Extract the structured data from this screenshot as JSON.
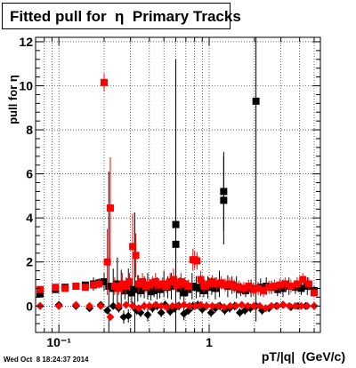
{
  "title": "Fitted pull for  η  Primary Tracks",
  "timestamp": "Wed Oct  8 18:24:37 2014",
  "chart_data": {
    "type": "scatter",
    "title": "Fitted pull for  η  Primary Tracks",
    "xlabel": "pT/|q|  (GeV/c)",
    "ylabel": "pull for η",
    "xscale": "log",
    "xlim": [
      0.07,
      5.5
    ],
    "ylim": [
      -1.2,
      12.2
    ],
    "grid": true,
    "x_tick_labels": [
      "10⁻¹",
      "1"
    ],
    "y_tick_labels": [
      "0",
      "2",
      "4",
      "6",
      "8",
      "10",
      "12"
    ],
    "colors": {
      "series_black": "#000000",
      "series_red": "#ff0000"
    },
    "series": [
      {
        "color": "#000000",
        "marker": "square",
        "x": [
          0.075,
          0.095,
          0.11,
          0.13,
          0.15,
          0.17,
          0.185,
          0.2,
          0.215,
          0.23,
          0.245,
          0.26,
          0.275,
          0.29,
          0.305,
          0.32,
          0.335,
          0.35,
          0.37,
          0.39,
          0.41,
          0.43,
          0.45,
          0.47,
          0.5,
          0.53,
          0.56,
          0.6,
          0.6,
          0.64,
          0.68,
          0.72,
          0.77,
          0.82,
          0.87,
          0.92,
          0.98,
          1.04,
          1.1,
          1.17,
          1.25,
          1.25,
          1.33,
          1.42,
          1.52,
          1.62,
          1.75,
          1.9,
          2.05,
          2.2,
          2.4,
          2.6,
          2.85,
          3.1,
          3.4,
          3.75,
          4.1,
          4.5,
          5.0
        ],
        "y": [
          0.55,
          0.75,
          0.85,
          0.9,
          0.95,
          1.0,
          1.05,
          1.1,
          0.9,
          0.8,
          1.0,
          0.85,
          0.7,
          0.9,
          0.6,
          0.75,
          0.8,
          0.7,
          0.85,
          0.9,
          0.65,
          0.7,
          0.8,
          0.75,
          1.0,
          0.85,
          0.9,
          3.7,
          2.8,
          0.8,
          0.6,
          0.75,
          0.9,
          0.85,
          0.8,
          0.7,
          0.85,
          0.9,
          0.8,
          1.0,
          4.8,
          5.2,
          0.9,
          0.95,
          0.85,
          0.75,
          0.7,
          0.8,
          9.3,
          0.85,
          0.9,
          0.85,
          0.75,
          0.8,
          0.9,
          0.85,
          0.8,
          0.9,
          0.7
        ],
        "yerr": [
          0.15,
          0.1,
          0.1,
          0.12,
          0.1,
          0.3,
          0.2,
          0.4,
          5.2,
          0.9,
          1.2,
          0.8,
          0.4,
          0.8,
          0.5,
          3.5,
          0.6,
          0.3,
          0.5,
          0.6,
          0.4,
          0.3,
          0.5,
          0.4,
          0.6,
          0.5,
          0.6,
          7.5,
          1.5,
          0.5,
          0.4,
          0.3,
          0.6,
          0.5,
          0.4,
          0.3,
          0.5,
          0.4,
          0.5,
          0.6,
          2.0,
          1.8,
          0.5,
          0.4,
          0.5,
          0.3,
          0.3,
          0.4,
          10.0,
          0.4,
          0.4,
          0.3,
          0.3,
          0.4,
          0.4,
          0.3,
          0.3,
          0.4,
          0.2
        ]
      },
      {
        "color": "#000000",
        "marker": "diamond",
        "x": [
          0.075,
          0.1,
          0.13,
          0.16,
          0.19,
          0.21,
          0.23,
          0.25,
          0.27,
          0.29,
          0.31,
          0.33,
          0.35,
          0.37,
          0.39,
          0.42,
          0.45,
          0.48,
          0.51,
          0.55,
          0.59,
          0.63,
          0.68,
          0.73,
          0.78,
          0.84,
          0.9,
          0.96,
          1.03,
          1.1,
          1.18,
          1.27,
          1.37,
          1.48,
          1.6,
          1.73,
          1.88,
          2.05,
          2.25,
          2.5,
          2.8,
          3.1,
          3.5,
          3.9,
          4.4,
          5.0
        ],
        "y": [
          0.0,
          0.05,
          0.0,
          -0.1,
          0.05,
          -0.2,
          0.0,
          -0.1,
          -0.5,
          -0.45,
          0.0,
          -0.2,
          -0.3,
          0.0,
          -0.4,
          -0.1,
          0.0,
          -0.3,
          0.05,
          -0.25,
          -0.1,
          0.0,
          -0.35,
          -0.2,
          0.0,
          0.05,
          -0.15,
          0.0,
          -0.3,
          -0.1,
          0.0,
          -0.2,
          -0.1,
          0.0,
          -0.3,
          -0.2,
          -0.1,
          0.0,
          -0.2,
          -0.1,
          0.0,
          0.05,
          -0.05,
          0.0,
          0.0,
          0.0
        ],
        "yerr": [
          0.1,
          0.1,
          0.1,
          0.1,
          0.1,
          0.15,
          0.15,
          0.2,
          0.3,
          0.3,
          0.2,
          0.2,
          0.2,
          0.2,
          0.3,
          0.2,
          0.2,
          0.2,
          0.2,
          0.2,
          0.2,
          0.2,
          0.3,
          0.2,
          0.2,
          0.2,
          0.2,
          0.2,
          0.2,
          0.2,
          0.2,
          0.2,
          0.2,
          0.2,
          0.2,
          0.2,
          0.2,
          0.2,
          0.2,
          0.15,
          0.15,
          0.1,
          0.1,
          0.1,
          0.1,
          0.1
        ]
      },
      {
        "color": "#ff0000",
        "marker": "square",
        "x": [
          0.075,
          0.095,
          0.11,
          0.13,
          0.15,
          0.17,
          0.185,
          0.2,
          0.21,
          0.22,
          0.235,
          0.25,
          0.265,
          0.28,
          0.295,
          0.31,
          0.325,
          0.34,
          0.36,
          0.38,
          0.4,
          0.42,
          0.44,
          0.46,
          0.49,
          0.52,
          0.55,
          0.58,
          0.61,
          0.65,
          0.69,
          0.73,
          0.78,
          0.8,
          0.83,
          0.88,
          0.93,
          0.99,
          1.05,
          1.12,
          1.2,
          1.28,
          1.37,
          1.47,
          1.58,
          1.7,
          1.83,
          1.97,
          2.12,
          2.3,
          2.5,
          2.72,
          2.95,
          3.2,
          3.5,
          3.85,
          4.2,
          4.6,
          5.0
        ],
        "y": [
          0.75,
          0.85,
          0.8,
          0.9,
          0.85,
          0.95,
          1.0,
          10.15,
          2.0,
          4.45,
          0.9,
          0.8,
          1.0,
          0.9,
          1.1,
          2.7,
          2.3,
          1.0,
          1.1,
          0.9,
          0.95,
          1.05,
          1.1,
          0.95,
          1.0,
          0.9,
          1.1,
          1.2,
          0.95,
          1.1,
          1.0,
          0.9,
          2.1,
          2.1,
          2.05,
          1.2,
          0.9,
          1.0,
          1.1,
          1.0,
          1.05,
          0.95,
          1.0,
          0.9,
          0.85,
          0.8,
          0.9,
          0.75,
          0.8,
          0.7,
          0.85,
          0.9,
          0.95,
          1.0,
          0.9,
          1.0,
          1.2,
          1.0,
          0.6
        ],
        "yerr": [
          0.1,
          0.1,
          0.1,
          0.1,
          0.1,
          0.1,
          0.2,
          0.4,
          1.5,
          2.3,
          0.4,
          0.3,
          0.5,
          0.4,
          0.4,
          1.5,
          1.0,
          0.4,
          0.4,
          0.3,
          0.3,
          0.3,
          0.4,
          0.3,
          0.3,
          0.3,
          0.4,
          0.5,
          0.3,
          0.4,
          0.3,
          0.3,
          0.5,
          0.4,
          0.4,
          0.4,
          0.3,
          0.3,
          0.3,
          0.3,
          0.3,
          0.3,
          0.3,
          0.3,
          0.3,
          0.3,
          0.3,
          0.3,
          0.3,
          0.3,
          0.3,
          0.3,
          0.3,
          0.3,
          0.3,
          0.3,
          0.3,
          0.3,
          0.2
        ]
      },
      {
        "color": "#ff0000",
        "marker": "diamond",
        "x": [
          0.075,
          0.1,
          0.13,
          0.16,
          0.19,
          0.22,
          0.25,
          0.28,
          0.31,
          0.34,
          0.37,
          0.4,
          0.44,
          0.48,
          0.52,
          0.57,
          0.62,
          0.68,
          0.74,
          0.81,
          0.88,
          0.96,
          1.05,
          1.15,
          1.26,
          1.38,
          1.51,
          1.65,
          1.81,
          1.98,
          2.17,
          2.38,
          2.6,
          2.85,
          3.12,
          3.42,
          3.75,
          4.1,
          4.5,
          5.0
        ],
        "y": [
          0.0,
          0.0,
          0.05,
          0.0,
          0.0,
          -0.5,
          0.0,
          0.05,
          0.0,
          -0.1,
          0.0,
          0.0,
          0.05,
          0.0,
          -0.05,
          0.0,
          0.0,
          0.05,
          0.0,
          0.0,
          0.05,
          0.0,
          0.0,
          0.0,
          -0.05,
          0.0,
          0.0,
          0.05,
          0.0,
          0.0,
          0.0,
          -0.1,
          0.0,
          0.0,
          0.05,
          0.0,
          0.0,
          0.0,
          0.0,
          0.0
        ],
        "yerr": [
          0.05,
          0.05,
          0.05,
          0.05,
          0.05,
          0.1,
          0.05,
          0.05,
          0.05,
          0.05,
          0.05,
          0.05,
          0.05,
          0.05,
          0.05,
          0.05,
          0.05,
          0.05,
          0.05,
          0.05,
          0.05,
          0.05,
          0.05,
          0.05,
          0.05,
          0.05,
          0.05,
          0.05,
          0.05,
          0.05,
          0.05,
          0.05,
          0.05,
          0.05,
          0.05,
          0.05,
          0.05,
          0.05,
          0.05,
          0.05
        ]
      }
    ]
  }
}
